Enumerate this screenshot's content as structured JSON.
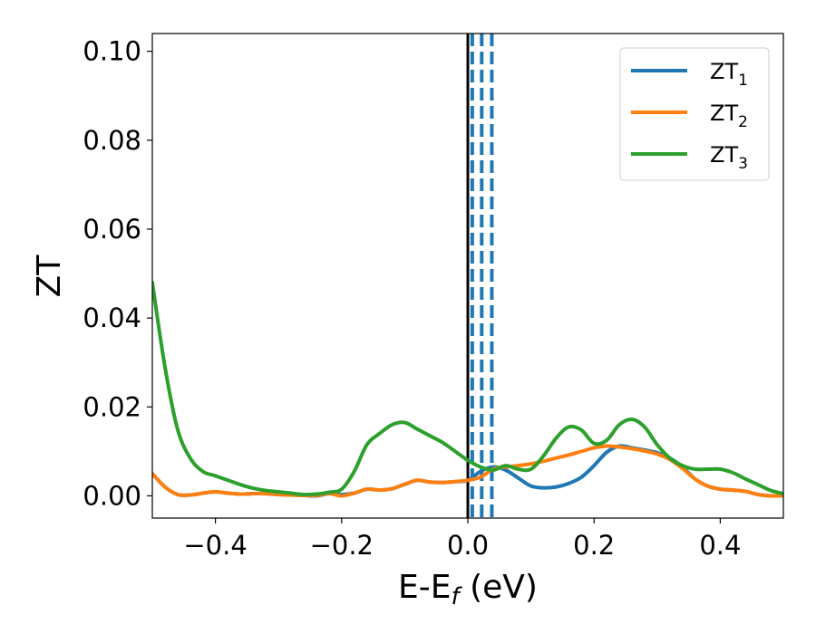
{
  "chart_data": {
    "type": "line",
    "title": "",
    "xlabel": "E-E",
    "xlabel_subscript": "f",
    "xlabel_unit": " (eV)",
    "ylabel": "ZT",
    "xlim": [
      -0.5,
      0.5
    ],
    "ylim": [
      -0.005,
      0.104
    ],
    "xticks": [
      -0.4,
      -0.2,
      0.0,
      0.2,
      0.4
    ],
    "xtick_labels": [
      "−0.4",
      "−0.2",
      "0.0",
      "0.2",
      "0.4"
    ],
    "yticks": [
      0.0,
      0.02,
      0.04,
      0.06,
      0.08,
      0.1
    ],
    "ytick_labels": [
      "0.00",
      "0.02",
      "0.04",
      "0.06",
      "0.08",
      "0.10"
    ],
    "grid": false,
    "legend_position": "top-right",
    "vertical_lines": [
      {
        "x": 0.0,
        "style": "solid",
        "color": "#000000"
      },
      {
        "x": 0.007,
        "style": "dashed",
        "color": "#1f77b4"
      },
      {
        "x": 0.022,
        "style": "dashed",
        "color": "#1f77b4"
      },
      {
        "x": 0.038,
        "style": "dashed",
        "color": "#1f77b4"
      }
    ],
    "series": [
      {
        "name": "ZT",
        "subscript": "1",
        "color": "#1f77b4",
        "x": [
          -0.5,
          -0.48,
          -0.46,
          -0.44,
          -0.42,
          -0.4,
          -0.38,
          -0.36,
          -0.34,
          -0.32,
          -0.3,
          -0.28,
          -0.26,
          -0.24,
          -0.22,
          -0.2,
          -0.18,
          -0.16,
          -0.14,
          -0.12,
          -0.1,
          -0.08,
          -0.06,
          -0.04,
          -0.02,
          0.0,
          0.02,
          0.04,
          0.06,
          0.08,
          0.1,
          0.12,
          0.14,
          0.16,
          0.18,
          0.2,
          0.22,
          0.24,
          0.26,
          0.28,
          0.3,
          0.32,
          0.34,
          0.36,
          0.38,
          0.4,
          0.42,
          0.44,
          0.46,
          0.48,
          0.5
        ],
        "y": [
          0.005,
          0.002,
          0.0003,
          0.0002,
          0.0006,
          0.0009,
          0.0006,
          0.0004,
          0.0005,
          0.0005,
          0.0003,
          0.0002,
          0.0001,
          0.0,
          0.0005,
          0.0003,
          0.0006,
          0.0015,
          0.0013,
          0.0016,
          0.0026,
          0.0035,
          0.0031,
          0.003,
          0.0032,
          0.0035,
          0.0055,
          0.0065,
          0.0058,
          0.004,
          0.0022,
          0.0018,
          0.002,
          0.0028,
          0.0042,
          0.0068,
          0.0098,
          0.0112,
          0.0108,
          0.0103,
          0.0097,
          0.0085,
          0.0065,
          0.0038,
          0.0022,
          0.0015,
          0.0013,
          0.001,
          0.0003,
          0.0,
          0.0
        ]
      },
      {
        "name": "ZT",
        "subscript": "2",
        "color": "#ff7f0e",
        "x": [
          -0.5,
          -0.48,
          -0.46,
          -0.44,
          -0.42,
          -0.4,
          -0.38,
          -0.36,
          -0.34,
          -0.32,
          -0.3,
          -0.28,
          -0.26,
          -0.24,
          -0.22,
          -0.2,
          -0.18,
          -0.16,
          -0.14,
          -0.12,
          -0.1,
          -0.08,
          -0.06,
          -0.04,
          -0.02,
          0.0,
          0.02,
          0.04,
          0.06,
          0.08,
          0.1,
          0.12,
          0.14,
          0.16,
          0.18,
          0.2,
          0.22,
          0.24,
          0.26,
          0.28,
          0.3,
          0.32,
          0.34,
          0.36,
          0.38,
          0.4,
          0.42,
          0.44,
          0.46,
          0.48,
          0.5
        ],
        "y": [
          0.005,
          0.002,
          0.0003,
          0.0002,
          0.0006,
          0.0009,
          0.0006,
          0.0004,
          0.0005,
          0.0005,
          0.0003,
          0.0002,
          0.0001,
          0.0001,
          0.0005,
          0.0,
          0.0006,
          0.0015,
          0.0013,
          0.0016,
          0.0026,
          0.0035,
          0.0031,
          0.003,
          0.0032,
          0.0035,
          0.0042,
          0.006,
          0.0065,
          0.0068,
          0.0072,
          0.0078,
          0.0085,
          0.0092,
          0.01,
          0.0108,
          0.0112,
          0.011,
          0.0106,
          0.0101,
          0.0094,
          0.0082,
          0.0062,
          0.0038,
          0.0022,
          0.0015,
          0.0013,
          0.001,
          0.0003,
          0.0,
          0.0
        ]
      },
      {
        "name": "ZT",
        "subscript": "3",
        "color": "#2ca02c",
        "x": [
          -0.5,
          -0.48,
          -0.46,
          -0.44,
          -0.42,
          -0.4,
          -0.38,
          -0.36,
          -0.34,
          -0.32,
          -0.3,
          -0.28,
          -0.26,
          -0.24,
          -0.22,
          -0.2,
          -0.18,
          -0.16,
          -0.14,
          -0.12,
          -0.1,
          -0.08,
          -0.06,
          -0.04,
          -0.02,
          0.0,
          0.02,
          0.04,
          0.06,
          0.08,
          0.1,
          0.12,
          0.14,
          0.16,
          0.18,
          0.2,
          0.22,
          0.24,
          0.26,
          0.28,
          0.3,
          0.32,
          0.34,
          0.36,
          0.38,
          0.4,
          0.42,
          0.44,
          0.46,
          0.48,
          0.5
        ],
        "y": [
          0.048,
          0.029,
          0.015,
          0.0085,
          0.0055,
          0.0045,
          0.0035,
          0.0025,
          0.0017,
          0.0012,
          0.0009,
          0.0006,
          0.0003,
          0.0004,
          0.0008,
          0.0015,
          0.0055,
          0.0115,
          0.014,
          0.016,
          0.0165,
          0.015,
          0.0135,
          0.012,
          0.01,
          0.008,
          0.0065,
          0.0058,
          0.0068,
          0.006,
          0.006,
          0.009,
          0.013,
          0.0155,
          0.0148,
          0.0118,
          0.0125,
          0.016,
          0.0172,
          0.0155,
          0.0115,
          0.0085,
          0.0068,
          0.006,
          0.006,
          0.006,
          0.0052,
          0.0038,
          0.0025,
          0.0012,
          0.0005
        ]
      }
    ]
  }
}
